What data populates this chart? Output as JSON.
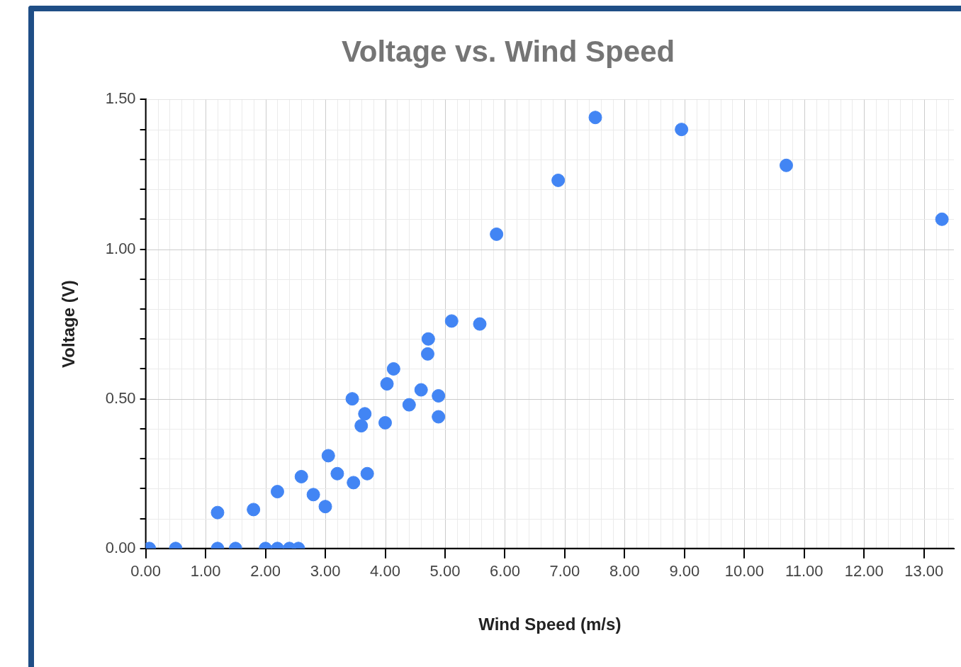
{
  "chart_data": {
    "type": "scatter",
    "title": "Voltage vs. Wind Speed",
    "xlabel": "Wind Speed (m/s)",
    "ylabel": "Voltage (V)",
    "xlim": [
      0,
      13.5
    ],
    "xticks": [
      {
        "value": 0,
        "label": "0.00"
      },
      {
        "value": 1,
        "label": "1.00"
      },
      {
        "value": 2,
        "label": "2.00"
      },
      {
        "value": 3,
        "label": "3.00"
      },
      {
        "value": 4,
        "label": "4.00"
      },
      {
        "value": 5,
        "label": "5.00"
      },
      {
        "value": 6,
        "label": "6.00"
      },
      {
        "value": 7,
        "label": "7.00"
      },
      {
        "value": 8,
        "label": "8.00"
      },
      {
        "value": 9,
        "label": "9.00"
      },
      {
        "value": 10,
        "label": "10.00"
      },
      {
        "value": 11,
        "label": "11.00"
      },
      {
        "value": 12,
        "label": "12.00"
      },
      {
        "value": 13,
        "label": "13.00"
      }
    ],
    "ylim": [
      0,
      1.5
    ],
    "yticks": [
      {
        "value": 0,
        "label": "0.00"
      },
      {
        "value": 0.1,
        "label": null
      },
      {
        "value": 0.2,
        "label": null
      },
      {
        "value": 0.3,
        "label": null
      },
      {
        "value": 0.4,
        "label": null
      },
      {
        "value": 0.5,
        "label": "0.50"
      },
      {
        "value": 0.6,
        "label": null
      },
      {
        "value": 0.7,
        "label": null
      },
      {
        "value": 0.8,
        "label": null
      },
      {
        "value": 0.9,
        "label": null
      },
      {
        "value": 1,
        "label": "1.00"
      },
      {
        "value": 1.1,
        "label": null
      },
      {
        "value": 1.2,
        "label": null
      },
      {
        "value": 1.3,
        "label": null
      },
      {
        "value": 1.4,
        "label": null
      },
      {
        "value": 1.5,
        "label": "1.50"
      }
    ],
    "grid": true,
    "legend": false,
    "marker": "circle",
    "series": [
      {
        "color": "#4285f4",
        "x": [
          0.06,
          0.5,
          1.2,
          1.2,
          1.5,
          1.8,
          2.0,
          2.2,
          2.4,
          2.55,
          2.2,
          2.6,
          2.8,
          3.0,
          3.05,
          3.2,
          3.47,
          3.7,
          3.45,
          3.66,
          3.6,
          4.0,
          4.03,
          4.14,
          4.4,
          4.6,
          4.71,
          4.72,
          4.89,
          4.89,
          5.11,
          5.58,
          5.86,
          6.89,
          7.51,
          8.95,
          10.7,
          13.3
        ],
        "values": [
          0,
          0,
          0,
          0.12,
          0,
          0.13,
          0,
          0,
          0,
          0,
          0.19,
          0.24,
          0.18,
          0.14,
          0.31,
          0.25,
          0.22,
          0.25,
          0.5,
          0.45,
          0.41,
          0.42,
          0.55,
          0.6,
          0.48,
          0.53,
          0.65,
          0.7,
          0.51,
          0.44,
          0.76,
          0.75,
          1.05,
          1.23,
          1.44,
          1.4,
          1.28,
          1.1
        ]
      }
    ]
  }
}
